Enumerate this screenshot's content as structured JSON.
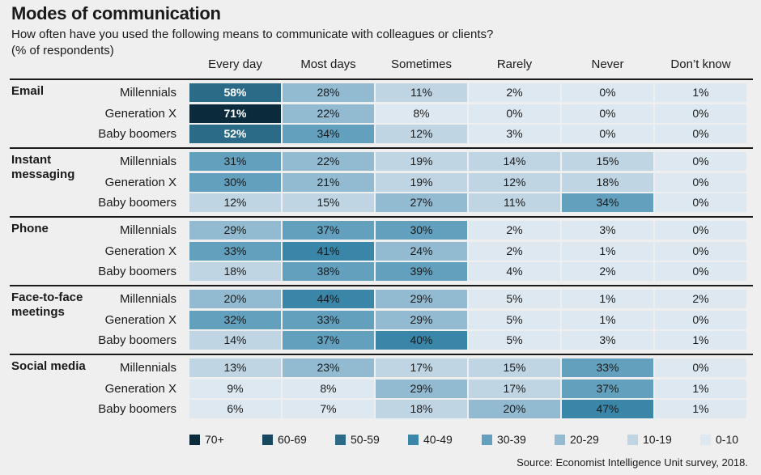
{
  "title": "Modes of communication",
  "subtitle": "How often have you used the following means to communicate with colleagues or clients?",
  "subtitle2": "(% of respondents)",
  "source": "Source: Economist Intelligence Unit survey, 2018.",
  "chart_data": {
    "type": "heatmap",
    "columns": [
      "Every day",
      "Most days",
      "Sometimes",
      "Rarely",
      "Never",
      "Don’t know"
    ],
    "groups": [
      {
        "name": "Email",
        "rows": [
          {
            "label": "Millennials",
            "values": [
              58,
              28,
              11,
              2,
              0,
              1
            ]
          },
          {
            "label": "Generation X",
            "values": [
              71,
              22,
              8,
              0,
              0,
              0
            ]
          },
          {
            "label": "Baby boomers",
            "values": [
              52,
              34,
              12,
              3,
              0,
              0
            ]
          }
        ]
      },
      {
        "name": "Instant messaging",
        "rows": [
          {
            "label": "Millennials",
            "values": [
              31,
              22,
              19,
              14,
              15,
              0
            ]
          },
          {
            "label": "Generation X",
            "values": [
              30,
              21,
              19,
              12,
              18,
              0
            ]
          },
          {
            "label": "Baby boomers",
            "values": [
              12,
              15,
              27,
              11,
              34,
              0
            ]
          }
        ]
      },
      {
        "name": "Phone",
        "rows": [
          {
            "label": "Millennials",
            "values": [
              29,
              37,
              30,
              2,
              3,
              0
            ]
          },
          {
            "label": "Generation X",
            "values": [
              33,
              41,
              24,
              2,
              1,
              0
            ]
          },
          {
            "label": "Baby boomers",
            "values": [
              18,
              38,
              39,
              4,
              2,
              0
            ]
          }
        ]
      },
      {
        "name": "Face-to-face meetings",
        "rows": [
          {
            "label": "Millennials",
            "values": [
              20,
              44,
              29,
              5,
              1,
              2
            ]
          },
          {
            "label": "Generation X",
            "values": [
              32,
              33,
              29,
              5,
              1,
              0
            ]
          },
          {
            "label": "Baby boomers",
            "values": [
              14,
              37,
              40,
              5,
              3,
              1
            ]
          }
        ]
      },
      {
        "name": "Social media",
        "rows": [
          {
            "label": "Millennials",
            "values": [
              13,
              23,
              17,
              15,
              33,
              0
            ]
          },
          {
            "label": "Generation X",
            "values": [
              9,
              8,
              29,
              17,
              37,
              1
            ]
          },
          {
            "label": "Baby boomers",
            "values": [
              6,
              7,
              18,
              20,
              47,
              1
            ]
          }
        ]
      }
    ],
    "legend": [
      {
        "label": "70+",
        "min": 70,
        "color": "#0b2a3c"
      },
      {
        "label": "60-69",
        "min": 60,
        "color": "#17485f"
      },
      {
        "label": "50-59",
        "min": 50,
        "color": "#2b6b87"
      },
      {
        "label": "40-49",
        "min": 40,
        "color": "#3986a8"
      },
      {
        "label": "30-39",
        "min": 30,
        "color": "#62a0be"
      },
      {
        "label": "20-29",
        "min": 20,
        "color": "#92bbd2"
      },
      {
        "label": "10-19",
        "min": 10,
        "color": "#bfd5e3"
      },
      {
        "label": "0-10",
        "min": 0,
        "color": "#dde8f0"
      }
    ]
  }
}
